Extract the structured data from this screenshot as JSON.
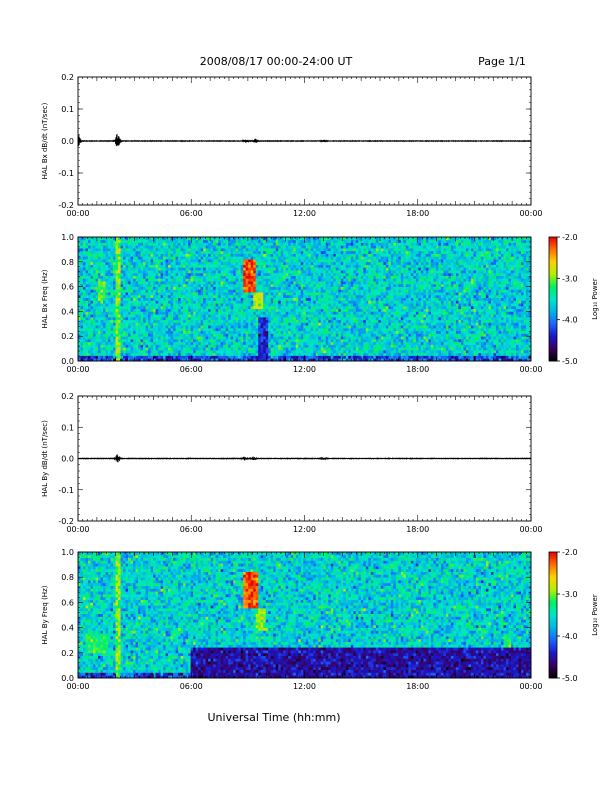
{
  "header": {
    "title": "2008/08/17   00:00-24:00 UT",
    "page": "Page 1/1"
  },
  "footer": {
    "xlabel": "Universal Time (hh:mm)"
  },
  "colors": {
    "trace": "#000000",
    "colormap": [
      "#000000",
      "#3a0060",
      "#1a18c8",
      "#1e63ff",
      "#00b4e6",
      "#00e6c8",
      "#00f060",
      "#b4f000",
      "#ffd200",
      "#ff6e00",
      "#e60000"
    ]
  },
  "chart_data": [
    {
      "type": "line",
      "id": "bx-dbdt",
      "ylabel": "HAL Bx dB/dt (nT/sec)",
      "xlim": [
        0,
        24
      ],
      "ylim": [
        -0.2,
        0.2
      ],
      "xticks": [
        "00:00",
        "06:00",
        "12:00",
        "18:00",
        "00:00"
      ],
      "yticks": [
        "0.2",
        "0.1",
        "0.0",
        "-0.1",
        "-0.2"
      ],
      "series": [
        {
          "bursts": [
            {
              "t": 0.0,
              "amp": 0.014
            },
            {
              "t": 2.1,
              "amp": 0.016
            },
            {
              "t": 8.9,
              "amp": 0.003
            },
            {
              "t": 9.4,
              "amp": 0.004
            },
            {
              "t": 13.0,
              "amp": 0.002
            }
          ]
        }
      ]
    },
    {
      "type": "heatmap",
      "id": "bx-spectrogram",
      "ylabel": "HAL Bx Freq (Hz)",
      "xlim": [
        0,
        24
      ],
      "ylim": [
        0.0,
        1.0
      ],
      "xticks": [
        "00:00",
        "06:00",
        "12:00",
        "18:00",
        "00:00"
      ],
      "yticks": [
        "1.0",
        "0.8",
        "0.6",
        "0.4",
        "0.2",
        "0.0"
      ],
      "colorbar": {
        "label": "Log₁₀ Power",
        "ticks": [
          "-2.0",
          "-3.0",
          "-4.0",
          "-5.0"
        ],
        "range": [
          -5.0,
          -2.0
        ]
      },
      "background_log_power": -3.6,
      "features": [
        {
          "kind": "band",
          "t": 2.1,
          "width_h": 0.35,
          "fmin": 0.0,
          "fmax": 1.0,
          "log_power": -3.0
        },
        {
          "kind": "patch",
          "t": 9.1,
          "width_h": 0.7,
          "fmin": 0.55,
          "fmax": 0.82,
          "log_power": -2.2
        },
        {
          "kind": "patch",
          "t": 9.5,
          "width_h": 0.5,
          "fmin": 0.42,
          "fmax": 0.55,
          "log_power": -2.9
        },
        {
          "kind": "patch",
          "t": 1.2,
          "width_h": 0.4,
          "fmin": 0.5,
          "fmax": 0.65,
          "log_power": -3.1
        },
        {
          "kind": "patch",
          "t": 9.8,
          "width_h": 0.6,
          "fmin": 0.0,
          "fmax": 0.35,
          "log_power": -4.3
        }
      ]
    },
    {
      "type": "line",
      "id": "by-dbdt",
      "ylabel": "HAL By dB/dt (nT/sec)",
      "xlim": [
        0,
        24
      ],
      "ylim": [
        -0.2,
        0.2
      ],
      "xticks": [
        "00:00",
        "06:00",
        "12:00",
        "18:00",
        "00:00"
      ],
      "yticks": [
        "0.2",
        "0.1",
        "0.0",
        "-0.1",
        "-0.2"
      ],
      "series": [
        {
          "bursts": [
            {
              "t": 2.1,
              "amp": 0.009
            },
            {
              "t": 8.8,
              "amp": 0.004
            },
            {
              "t": 9.3,
              "amp": 0.004
            },
            {
              "t": 13.0,
              "amp": 0.002
            }
          ]
        }
      ]
    },
    {
      "type": "heatmap",
      "id": "by-spectrogram",
      "ylabel": "HAL By Freq (Hz)",
      "xlim": [
        0,
        24
      ],
      "ylim": [
        0.0,
        1.0
      ],
      "xticks": [
        "00:00",
        "06:00",
        "12:00",
        "18:00",
        "00:00"
      ],
      "yticks": [
        "1.0",
        "0.8",
        "0.6",
        "0.4",
        "0.2",
        "0.0"
      ],
      "colorbar": {
        "label": "Log₁₀ Power",
        "ticks": [
          "-2.0",
          "-3.0",
          "-4.0",
          "-5.0"
        ],
        "range": [
          -5.0,
          -2.0
        ]
      },
      "background_log_power": -3.6,
      "features": [
        {
          "kind": "band",
          "t": 2.1,
          "width_h": 0.35,
          "fmin": 0.0,
          "fmax": 1.0,
          "log_power": -3.0
        },
        {
          "kind": "patch",
          "t": 9.2,
          "width_h": 0.8,
          "fmin": 0.55,
          "fmax": 0.85,
          "log_power": -2.2
        },
        {
          "kind": "patch",
          "t": 9.7,
          "width_h": 0.6,
          "fmin": 0.38,
          "fmax": 0.55,
          "log_power": -3.0
        },
        {
          "kind": "patch",
          "t": 1.0,
          "width_h": 1.2,
          "fmin": 0.2,
          "fmax": 0.35,
          "log_power": -3.2
        },
        {
          "kind": "patch",
          "t": 22.7,
          "width_h": 0.4,
          "fmin": 0.15,
          "fmax": 0.35,
          "log_power": -3.1
        },
        {
          "kind": "quiet",
          "t": 15.0,
          "width_h": 18.0,
          "fmin": 0.0,
          "fmax": 0.25,
          "log_power": -4.5
        }
      ]
    }
  ]
}
